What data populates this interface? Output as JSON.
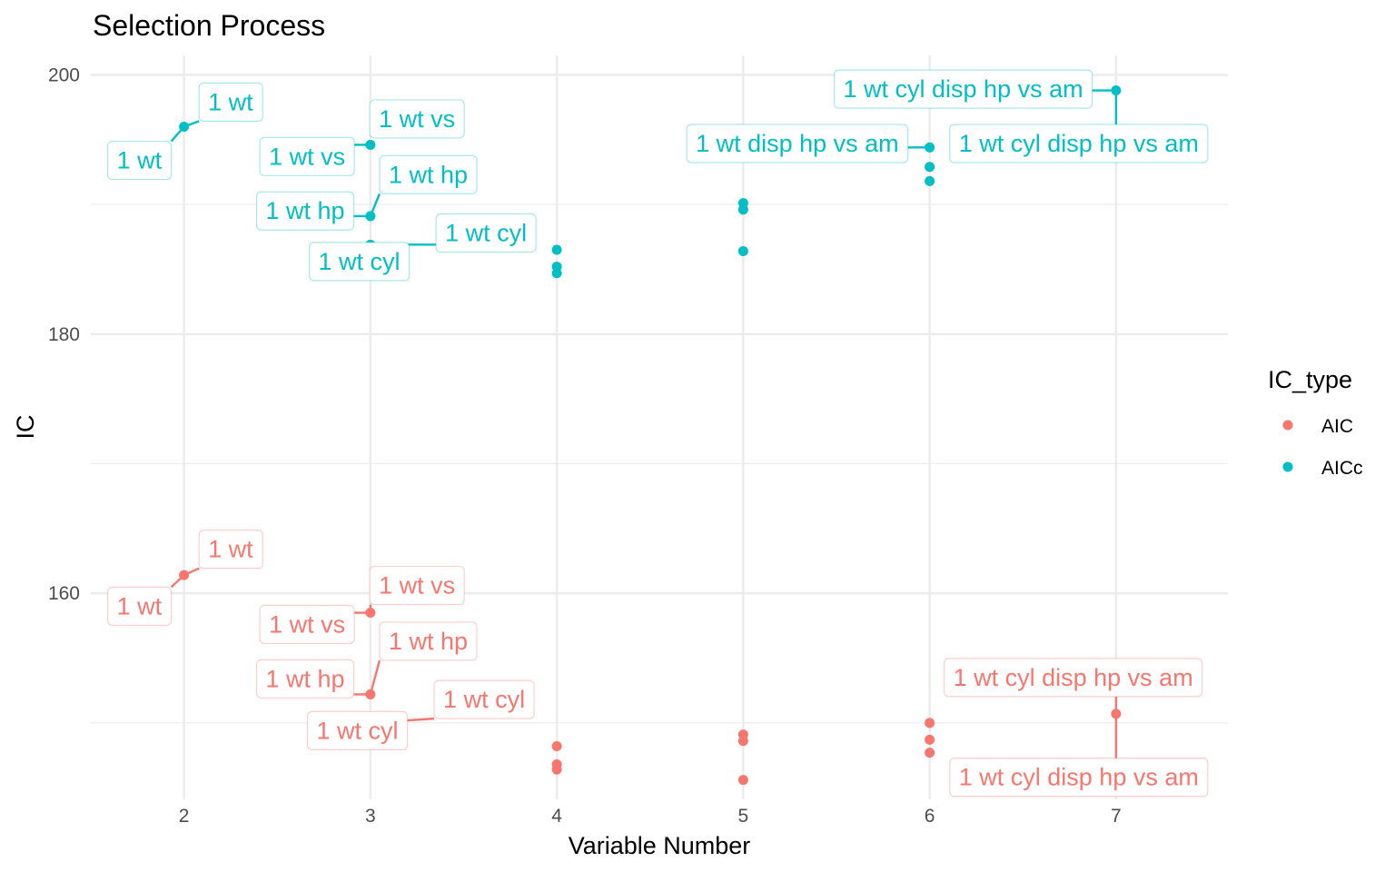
{
  "chart_data": {
    "type": "scatter",
    "title": "Selection Process",
    "xlabel": "Variable Number",
    "ylabel": "IC",
    "xlim": [
      1.5,
      7.6
    ],
    "ylim": [
      144.1,
      201.5
    ],
    "x_ticks": [
      "2",
      "3",
      "4",
      "5",
      "6",
      "7"
    ],
    "x_tick_values": [
      2,
      3,
      4,
      5,
      6,
      7
    ],
    "y_ticks": [
      "160",
      "180",
      "200"
    ],
    "y_tick_values": [
      160,
      180,
      200
    ],
    "y_minor_gridlines": [
      150,
      170,
      190
    ],
    "grid": true,
    "legend": {
      "title": "IC_type",
      "placement": "right"
    },
    "series": [
      {
        "name": "AIC",
        "color": "#F8766D",
        "points": [
          {
            "x": 2,
            "y": 161.4
          },
          {
            "x": 3,
            "y": 158.5
          },
          {
            "x": 3,
            "y": 152.2
          },
          {
            "x": 3,
            "y": 150.0
          },
          {
            "x": 4,
            "y": 148.2
          },
          {
            "x": 4,
            "y": 146.8
          },
          {
            "x": 4,
            "y": 146.4
          },
          {
            "x": 5,
            "y": 149.1
          },
          {
            "x": 5,
            "y": 148.6
          },
          {
            "x": 5,
            "y": 145.6
          },
          {
            "x": 6,
            "y": 150.0
          },
          {
            "x": 6,
            "y": 148.7
          },
          {
            "x": 6,
            "y": 147.7
          },
          {
            "x": 7,
            "y": 150.7
          }
        ]
      },
      {
        "name": "AICc",
        "color": "#00BFC4",
        "points": [
          {
            "x": 2,
            "y": 196.0
          },
          {
            "x": 3,
            "y": 194.6
          },
          {
            "x": 3,
            "y": 189.1
          },
          {
            "x": 3,
            "y": 186.9
          },
          {
            "x": 4,
            "y": 186.5
          },
          {
            "x": 4,
            "y": 185.2
          },
          {
            "x": 4,
            "y": 184.7
          },
          {
            "x": 5,
            "y": 190.1
          },
          {
            "x": 5,
            "y": 189.6
          },
          {
            "x": 5,
            "y": 186.4
          },
          {
            "x": 6,
            "y": 194.4
          },
          {
            "x": 6,
            "y": 192.9
          },
          {
            "x": 6,
            "y": 191.8
          },
          {
            "x": 7,
            "y": 198.8
          }
        ]
      }
    ],
    "annotations": [
      {
        "series": "AICc",
        "text": "1 wt",
        "at": [
          2,
          196.0
        ],
        "label_pos": [
          2.25,
          197.9
        ]
      },
      {
        "series": "AICc",
        "text": "1 wt",
        "at": [
          2,
          196.0
        ],
        "label_pos": [
          1.76,
          193.4
        ]
      },
      {
        "series": "AICc",
        "text": "1 wt vs",
        "at": [
          3,
          194.6
        ],
        "label_pos": [
          3.25,
          196.6
        ]
      },
      {
        "series": "AICc",
        "text": "1 wt vs",
        "at": [
          3,
          194.6
        ],
        "label_pos": [
          2.66,
          193.7
        ]
      },
      {
        "series": "AICc",
        "text": "1 wt hp",
        "at": [
          3,
          189.1
        ],
        "label_pos": [
          3.31,
          192.3
        ]
      },
      {
        "series": "AICc",
        "text": "1 wt hp",
        "at": [
          3,
          189.1
        ],
        "label_pos": [
          2.65,
          189.5
        ]
      },
      {
        "series": "AICc",
        "text": "1 wt cyl",
        "at": [
          3,
          186.9
        ],
        "label_pos": [
          3.62,
          187.8
        ]
      },
      {
        "series": "AICc",
        "text": "1 wt cyl",
        "at": [
          3,
          186.9
        ],
        "label_pos": [
          2.94,
          185.6
        ]
      },
      {
        "series": "AICc",
        "text": "1 wt cyl disp hp vs am",
        "at": [
          7,
          198.8
        ],
        "label_pos": [
          6.18,
          198.9
        ]
      },
      {
        "series": "AICc",
        "text": "1 wt disp hp vs am",
        "at": [
          6,
          194.4
        ],
        "label_pos": [
          5.29,
          194.7
        ]
      },
      {
        "series": "AICc",
        "text": "1 wt cyl disp hp vs am",
        "at": [
          7,
          198.8
        ],
        "label_pos": [
          6.8,
          194.7
        ]
      },
      {
        "series": "AIC",
        "text": "1 wt",
        "at": [
          2,
          161.4
        ],
        "label_pos": [
          2.25,
          163.4
        ]
      },
      {
        "series": "AIC",
        "text": "1 wt",
        "at": [
          2,
          161.4
        ],
        "label_pos": [
          1.76,
          159.0
        ]
      },
      {
        "series": "AIC",
        "text": "1 wt vs",
        "at": [
          3,
          158.5
        ],
        "label_pos": [
          3.25,
          160.6
        ]
      },
      {
        "series": "AIC",
        "text": "1 wt vs",
        "at": [
          3,
          158.5
        ],
        "label_pos": [
          2.66,
          157.6
        ]
      },
      {
        "series": "AIC",
        "text": "1 wt hp",
        "at": [
          3,
          152.2
        ],
        "label_pos": [
          3.31,
          156.3
        ]
      },
      {
        "series": "AIC",
        "text": "1 wt hp",
        "at": [
          3,
          152.2
        ],
        "label_pos": [
          2.65,
          153.4
        ]
      },
      {
        "series": "AIC",
        "text": "1 wt cyl",
        "at": [
          3,
          150.0
        ],
        "label_pos": [
          3.61,
          151.8
        ]
      },
      {
        "series": "AIC",
        "text": "1 wt cyl",
        "at": [
          3,
          150.0
        ],
        "label_pos": [
          2.93,
          149.4
        ]
      },
      {
        "series": "AIC",
        "text": "1 wt cyl disp hp vs am",
        "at": [
          7,
          150.7
        ],
        "label_pos": [
          6.77,
          153.5
        ]
      },
      {
        "series": "AIC",
        "text": "1 wt cyl disp hp vs am",
        "at": [
          7,
          150.7
        ],
        "label_pos": [
          6.8,
          145.8
        ]
      }
    ]
  }
}
